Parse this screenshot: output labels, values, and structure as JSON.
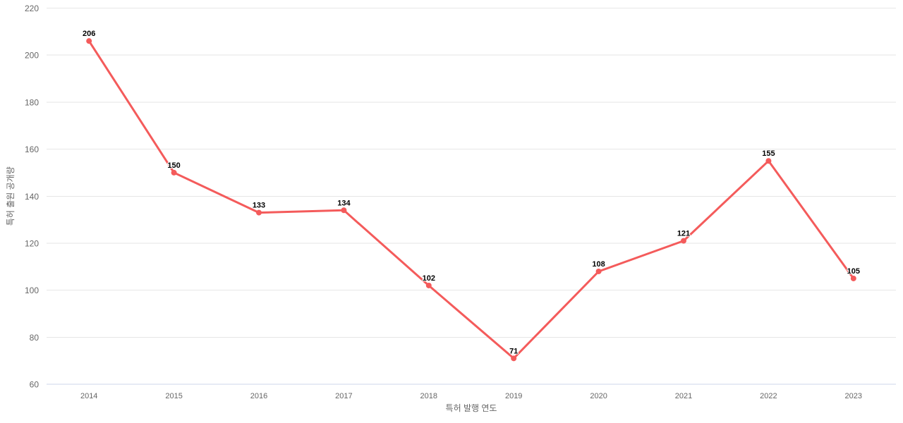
{
  "chart_data": {
    "type": "line",
    "categories": [
      "2014",
      "2015",
      "2016",
      "2017",
      "2018",
      "2019",
      "2020",
      "2021",
      "2022",
      "2023"
    ],
    "series": [
      {
        "name": "특허 출원 공개량",
        "values": [
          206,
          150,
          133,
          134,
          102,
          71,
          108,
          121,
          155,
          105
        ]
      }
    ],
    "title": "",
    "xlabel": "특허 발행 연도",
    "ylabel": "특허 출원 공개량",
    "ylim": [
      60,
      220
    ],
    "yticks": [
      60,
      80,
      100,
      120,
      140,
      160,
      180,
      200,
      220
    ],
    "data_labels": [
      206,
      150,
      133,
      134,
      102,
      71,
      108,
      121,
      155,
      105
    ],
    "grid": true,
    "legend": false,
    "colors": {
      "line": "#f45b5b",
      "marker": "#f45b5b",
      "grid_line": "#e6e6e6",
      "axis_line": "#ccd6eb",
      "tick_label": "#666666",
      "axis_title": "#666666",
      "data_label": "#000000",
      "background": "#ffffff"
    }
  }
}
